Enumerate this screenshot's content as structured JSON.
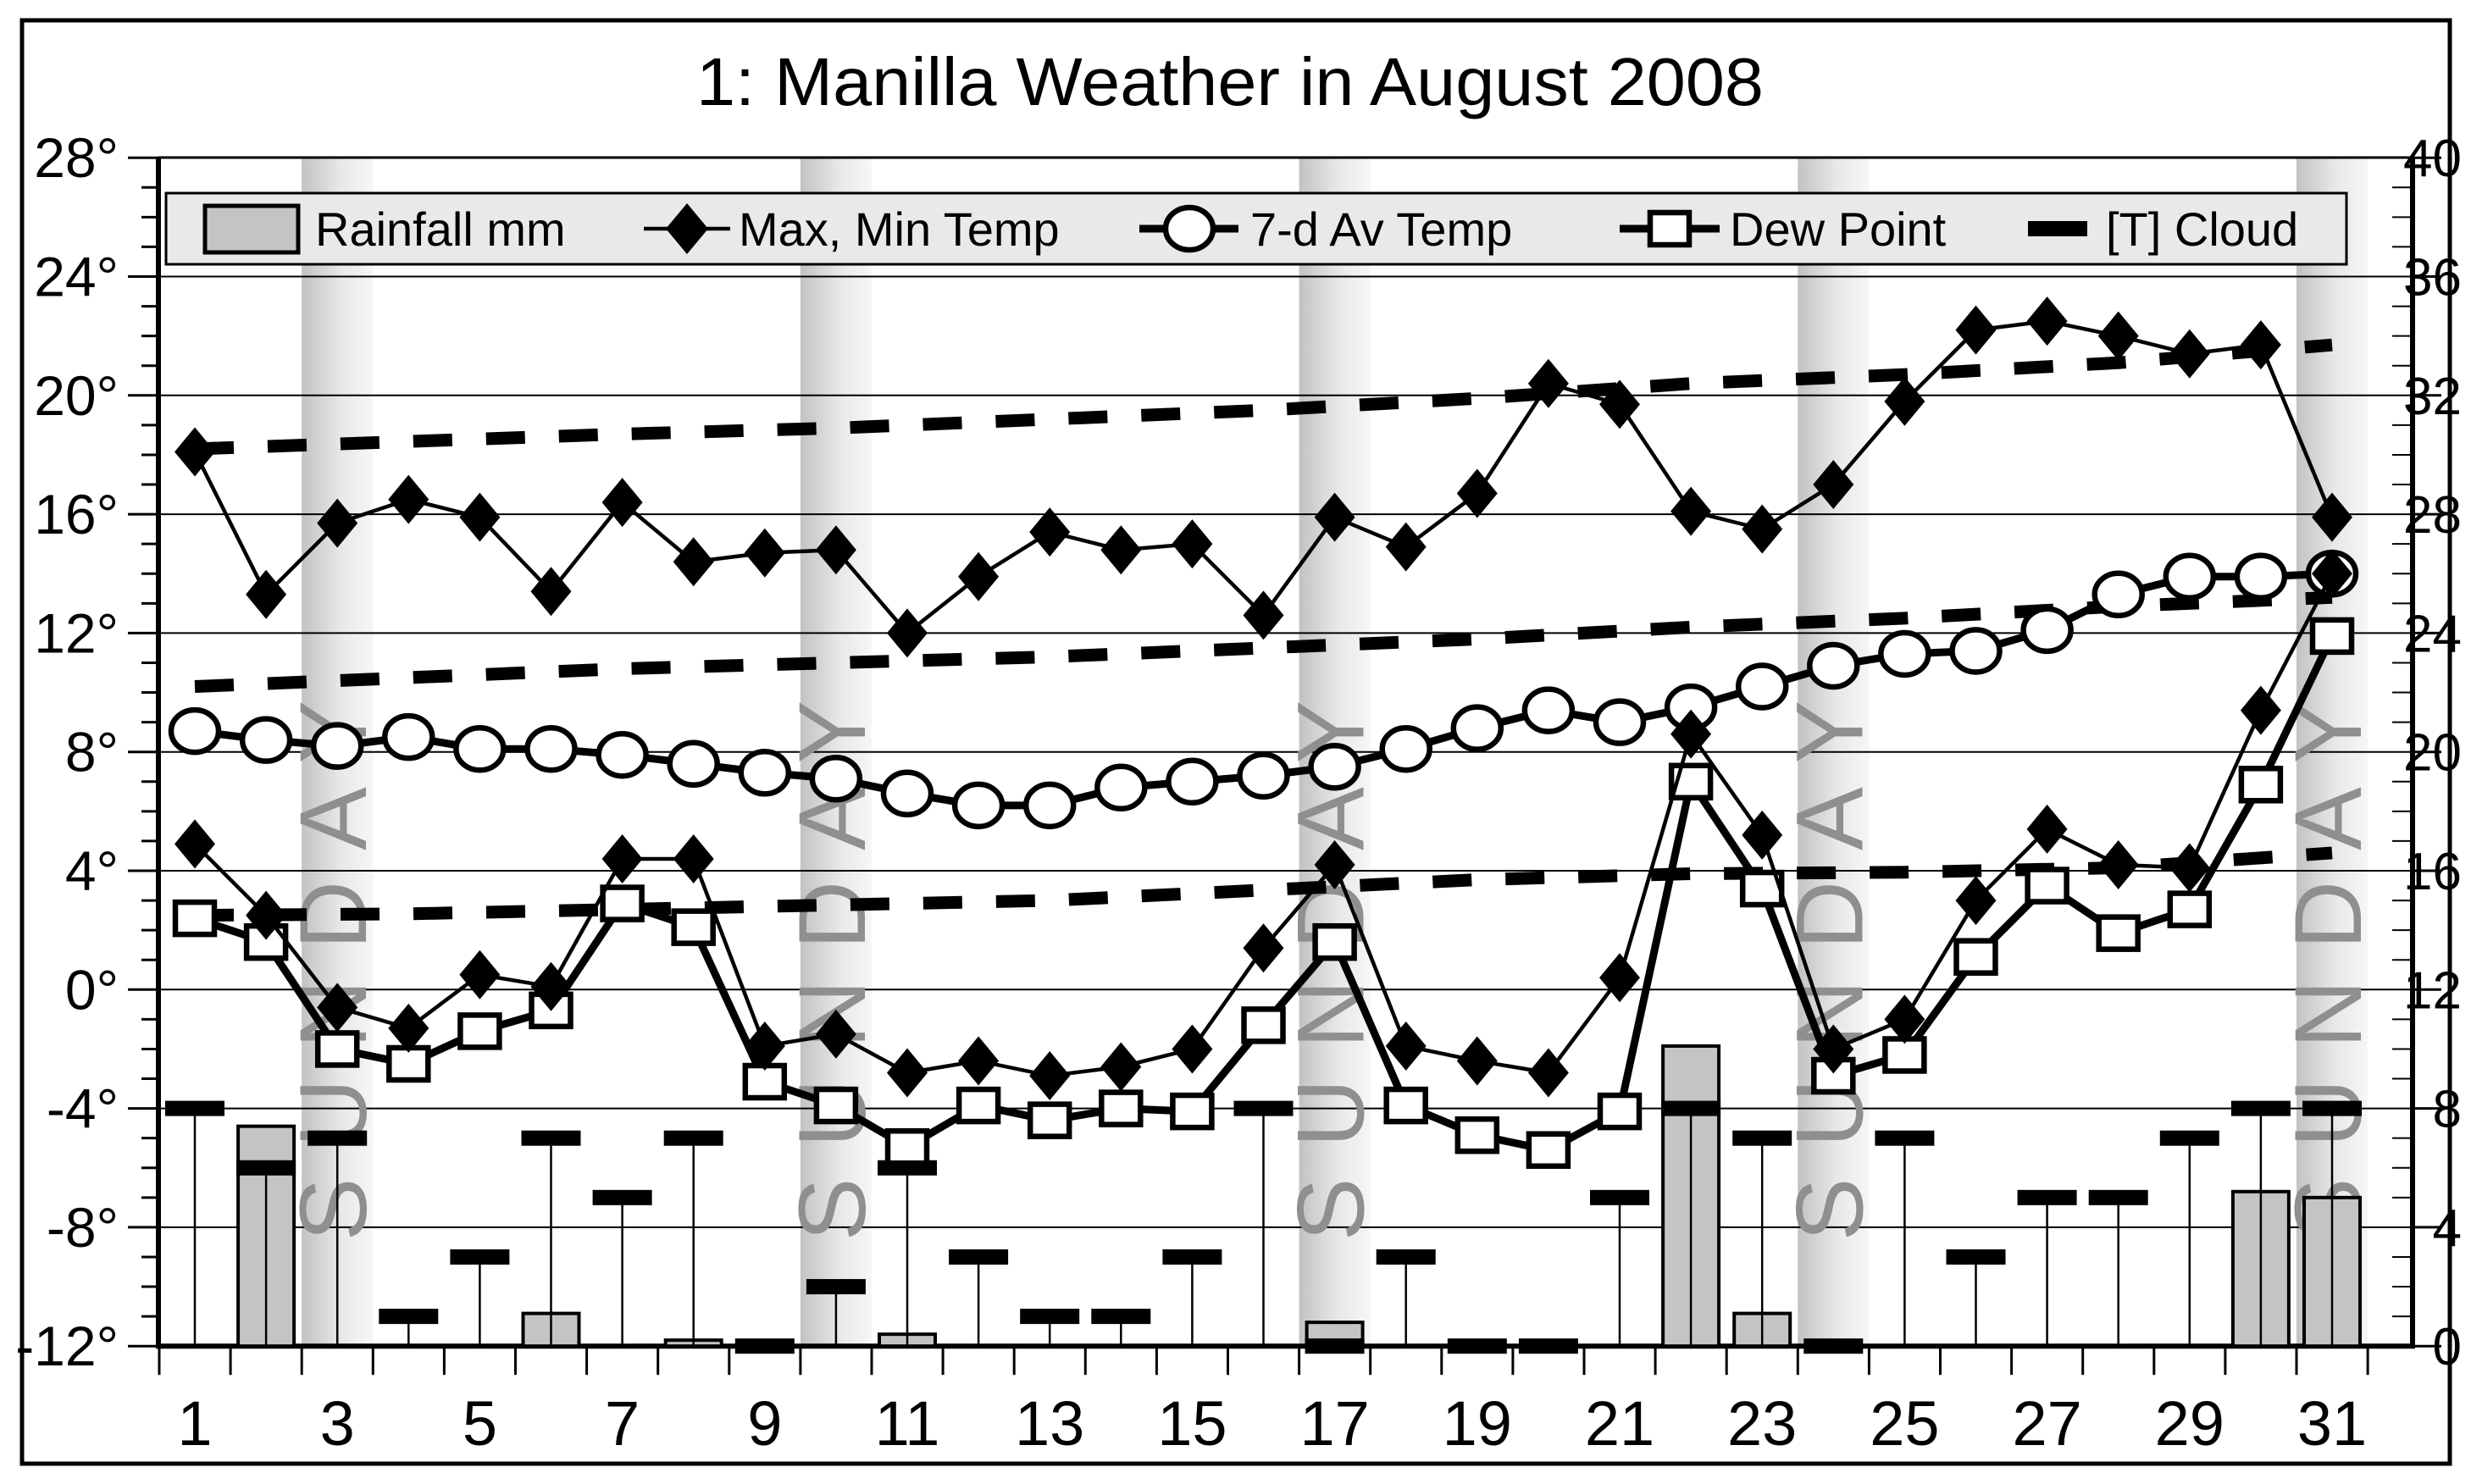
{
  "title": "1: Manilla Weather in August 2008",
  "sunday_label": "SUNDAY",
  "legend": {
    "rainfall": "Rainfall mm",
    "maxmin": "Max, Min Temp",
    "avg7": "7-d Av Temp",
    "dew": "Dew Point",
    "cloud": "[T] Cloud"
  },
  "axes": {
    "left": {
      "labels": [
        "28°",
        "24°",
        "20°",
        "16°",
        "12°",
        "8°",
        "4°",
        "0°",
        "-4°",
        "-8°",
        "-12°"
      ],
      "values": [
        28,
        24,
        20,
        16,
        12,
        8,
        4,
        0,
        -4,
        -8,
        -12
      ],
      "range": [
        -12,
        28
      ],
      "minor_step": 1
    },
    "right": {
      "labels": [
        "40",
        "36",
        "32",
        "28",
        "24",
        "20",
        "16",
        "12",
        "8",
        "4",
        "0"
      ],
      "values": [
        40,
        36,
        32,
        28,
        24,
        20,
        16,
        12,
        8,
        4,
        0
      ],
      "range": [
        0,
        40
      ],
      "minor_step": 1
    },
    "x": {
      "labels": [
        "1",
        "3",
        "5",
        "7",
        "9",
        "11",
        "13",
        "15",
        "17",
        "19",
        "21",
        "23",
        "25",
        "27",
        "29",
        "31"
      ],
      "values": [
        1,
        3,
        5,
        7,
        9,
        11,
        13,
        15,
        17,
        19,
        21,
        23,
        25,
        27,
        29,
        31
      ]
    }
  },
  "chart_data": {
    "type": "line+bar",
    "title": "1: Manilla Weather in August 2008",
    "days": [
      1,
      2,
      3,
      4,
      5,
      6,
      7,
      8,
      9,
      10,
      11,
      12,
      13,
      14,
      15,
      16,
      17,
      18,
      19,
      20,
      21,
      22,
      23,
      24,
      25,
      26,
      27,
      28,
      29,
      30,
      31
    ],
    "ylim_left": [
      -12,
      28
    ],
    "ylim_right": [
      0,
      40
    ],
    "grid_lines_at": [
      24,
      20,
      16,
      12,
      8,
      4,
      0,
      -4,
      -8
    ],
    "sundays": [
      3,
      10,
      17,
      24,
      31
    ],
    "series": [
      {
        "name": "Rainfall mm",
        "type": "bar",
        "axis": "right",
        "values": [
          0,
          7.4,
          0,
          0,
          0,
          1.1,
          0,
          0.2,
          0,
          0,
          0.4,
          0,
          0,
          0,
          0,
          0,
          0.8,
          0,
          0,
          0,
          0,
          10.1,
          1.1,
          0,
          0,
          0,
          0,
          0,
          0,
          5.2,
          5.0
        ]
      },
      {
        "name": "Max Temp",
        "type": "line",
        "marker": "diamond",
        "axis": "left",
        "values": [
          18.1,
          13.3,
          15.7,
          16.5,
          15.9,
          13.4,
          16.4,
          14.4,
          14.7,
          14.8,
          12.0,
          13.9,
          15.4,
          14.8,
          15.0,
          12.6,
          15.9,
          14.9,
          16.7,
          20.4,
          19.7,
          16.1,
          15.5,
          17.0,
          19.8,
          22.2,
          22.5,
          22.0,
          21.4,
          21.7,
          15.9
        ]
      },
      {
        "name": "Min Temp",
        "type": "line",
        "marker": "diamond",
        "axis": "left",
        "values": [
          4.9,
          2.5,
          -0.6,
          -1.3,
          0.5,
          0.1,
          4.4,
          4.4,
          -1.9,
          -1.5,
          -2.8,
          -2.4,
          -2.9,
          -2.6,
          -2.0,
          1.4,
          4.2,
          -1.9,
          -2.4,
          -2.8,
          0.4,
          8.6,
          5.2,
          -2.0,
          -1.0,
          3.0,
          5.4,
          4.2,
          4.1,
          9.4,
          14.0
        ]
      },
      {
        "name": "7-d Av Temp",
        "type": "line",
        "marker": "circle",
        "axis": "left",
        "values": [
          8.7,
          8.4,
          8.2,
          8.5,
          8.1,
          8.1,
          7.9,
          7.6,
          7.3,
          7.1,
          6.6,
          6.2,
          6.2,
          6.8,
          7.0,
          7.2,
          7.5,
          8.1,
          8.8,
          9.4,
          9.0,
          9.5,
          10.2,
          10.9,
          11.3,
          11.4,
          12.1,
          13.3,
          13.9,
          13.9,
          14.0
        ]
      },
      {
        "name": "Dew Point",
        "type": "line",
        "marker": "square",
        "axis": "left",
        "values": [
          2.4,
          1.6,
          -2.0,
          -2.5,
          -1.4,
          -0.7,
          2.9,
          2.1,
          -3.1,
          -3.9,
          -5.3,
          -3.9,
          -4.4,
          -4.0,
          -4.1,
          -1.2,
          1.6,
          -3.9,
          -4.9,
          -5.4,
          -4.1,
          7.0,
          3.4,
          -2.9,
          -2.2,
          1.1,
          3.5,
          1.9,
          2.7,
          6.9,
          11.9
        ]
      },
      {
        "name": "[T] Cloud",
        "type": "tmarker",
        "axis": "right",
        "values": [
          8,
          6,
          7,
          1,
          3,
          7,
          5,
          7,
          0,
          2,
          6,
          3,
          1,
          1,
          3,
          8,
          0,
          3,
          0,
          0,
          5,
          8,
          7,
          0,
          7,
          3,
          5,
          5,
          7,
          8,
          8
        ]
      }
    ],
    "trend_lines": [
      {
        "name": "long-term average max (dashed)",
        "points": [
          [
            1,
            18.2
          ],
          [
            4,
            18.45
          ],
          [
            7,
            18.7
          ],
          [
            10,
            18.9
          ],
          [
            13,
            19.2
          ],
          [
            16,
            19.5
          ],
          [
            19,
            19.9
          ],
          [
            22,
            20.4
          ],
          [
            25,
            20.7
          ],
          [
            28,
            21.1
          ],
          [
            31,
            21.7
          ]
        ]
      },
      {
        "name": "long-term average mean (dashed)",
        "points": [
          [
            1,
            10.2
          ],
          [
            4,
            10.5
          ],
          [
            7,
            10.8
          ],
          [
            10,
            11.0
          ],
          [
            13,
            11.2
          ],
          [
            16,
            11.5
          ],
          [
            19,
            11.8
          ],
          [
            22,
            12.2
          ],
          [
            25,
            12.5
          ],
          [
            28,
            12.9
          ],
          [
            31,
            13.2
          ]
        ]
      },
      {
        "name": "long-term average min (dashed)",
        "points": [
          [
            1,
            2.5
          ],
          [
            4,
            2.55
          ],
          [
            7,
            2.7
          ],
          [
            10,
            2.85
          ],
          [
            13,
            3.0
          ],
          [
            16,
            3.35
          ],
          [
            19,
            3.7
          ],
          [
            22,
            3.9
          ],
          [
            25,
            3.95
          ],
          [
            28,
            4.1
          ],
          [
            31,
            4.6
          ]
        ]
      }
    ]
  },
  "colors": {
    "series": "#000000",
    "rain_fill": "#c4c4c4",
    "band_from": "#c2c2c2",
    "band_to": "#f6f6f6",
    "legend_bg": "#e9e9e9",
    "sunday_text": "#8f8f8f",
    "background": "#ffffff"
  }
}
